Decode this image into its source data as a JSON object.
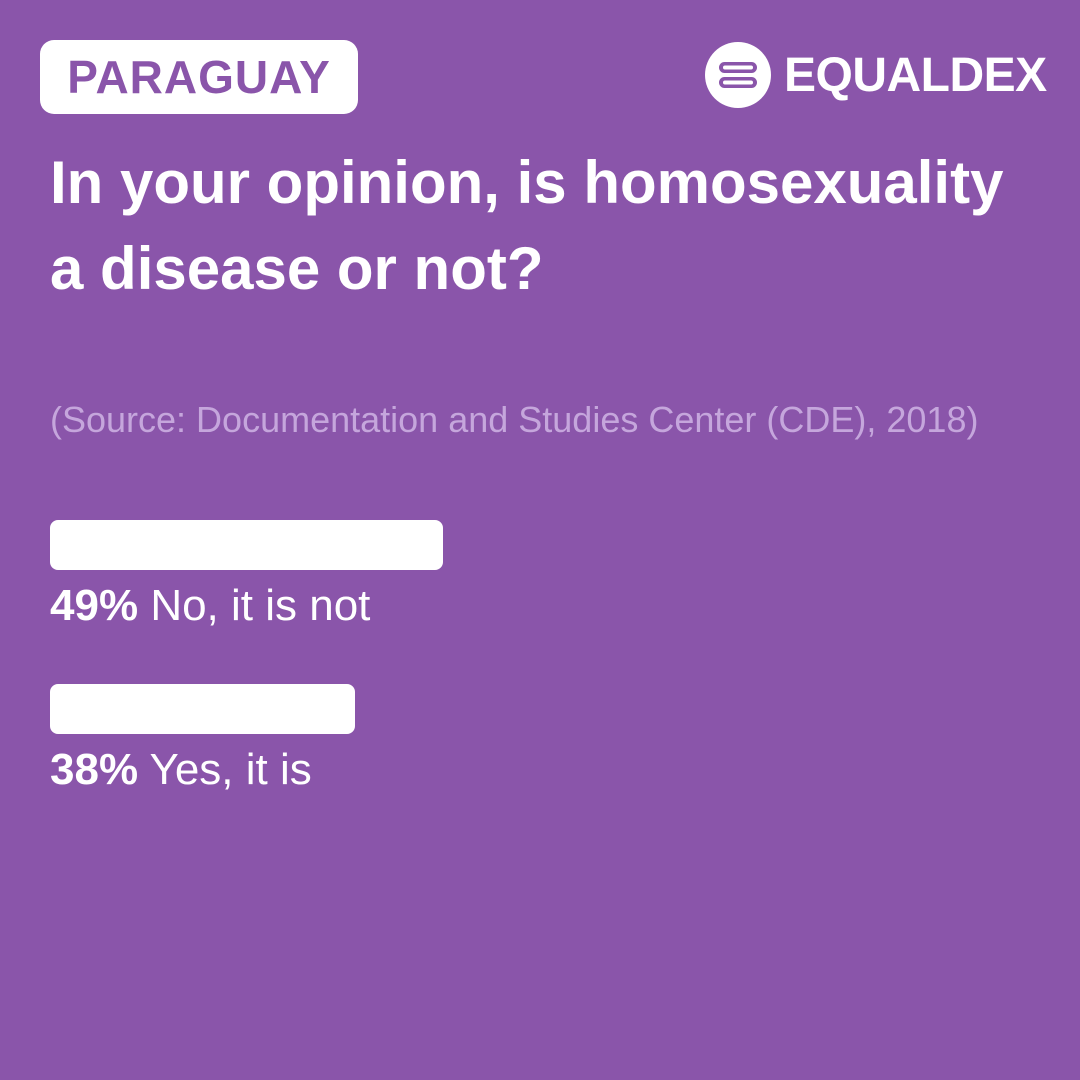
{
  "country": "PARAGUAY",
  "brand": "EQUALDEX",
  "chart_data": {
    "type": "bar",
    "title": "In your opinion, is homosexuality a disease or not?",
    "subtitle": "(Source: Documentation and Studies Center (CDE), 2018)",
    "categories": [
      "No, it is not",
      "Yes, it is"
    ],
    "values": [
      49,
      38
    ],
    "value_labels": [
      "49%",
      "38%"
    ],
    "color": "#ffffff"
  }
}
